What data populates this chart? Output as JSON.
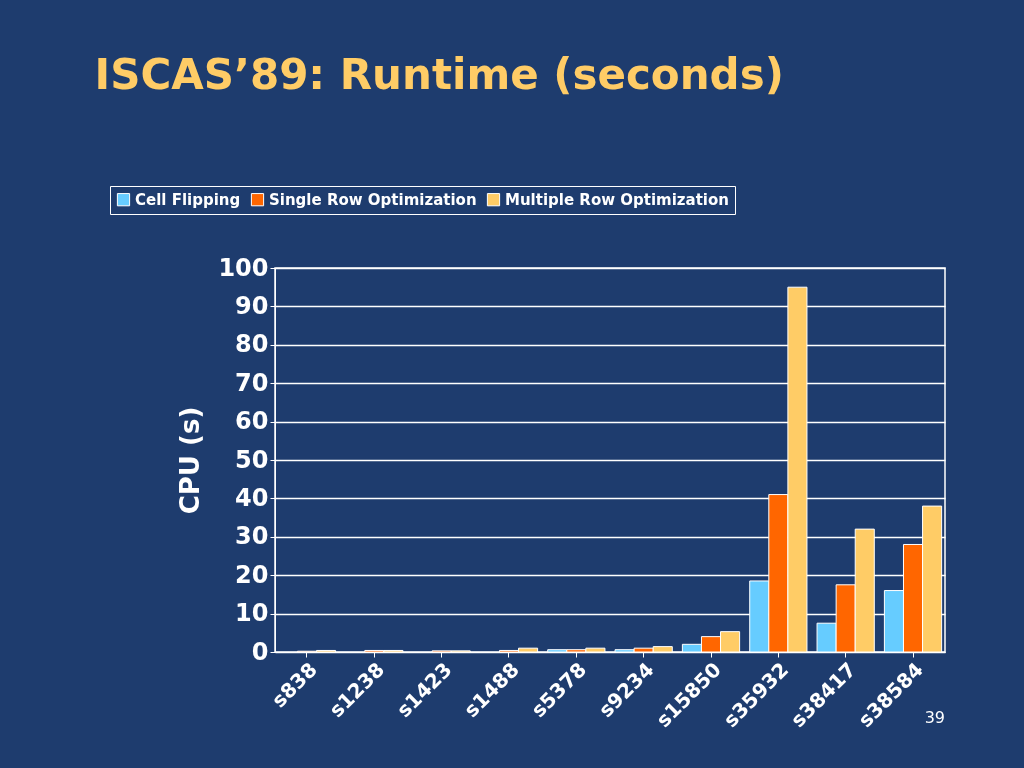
{
  "chart_data": {
    "type": "bar",
    "title": "ISCAS’89: Runtime (seconds)",
    "ylabel": "CPU (s)",
    "categories": [
      "s838",
      "s1238",
      "s1423",
      "s1488",
      "s5378",
      "s9234",
      "s15850",
      "s35932",
      "s38417",
      "s38584"
    ],
    "series": [
      {
        "name": "Cell Flipping",
        "color": "#66ccff",
        "values": [
          null,
          null,
          null,
          null,
          0.6,
          0.6,
          2,
          18.5,
          7.5,
          16
        ]
      },
      {
        "name": "Single Row Optimization",
        "color": "#ff6600",
        "values": [
          0.2,
          0.4,
          0.3,
          0.4,
          0.6,
          1.0,
          4,
          41,
          17.5,
          28
        ]
      },
      {
        "name": "Multiple Row Optimization",
        "color": "#ffcc66",
        "values": [
          0.4,
          0.4,
          0.3,
          1.0,
          1.0,
          1.4,
          5.3,
          95,
          32,
          38
        ]
      }
    ],
    "ylim": [
      0,
      100
    ],
    "yticks": [
      0,
      10,
      20,
      30,
      40,
      50,
      60,
      70,
      80,
      90,
      100
    ],
    "grid": "y",
    "legend": "top",
    "annotations": [
      "39"
    ]
  }
}
